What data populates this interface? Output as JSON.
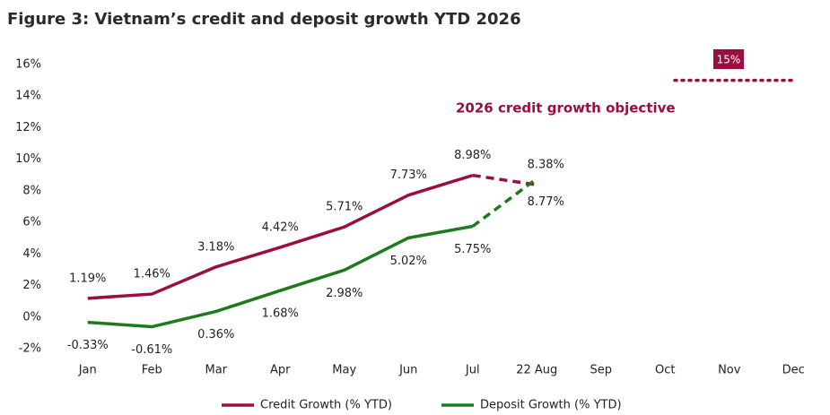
{
  "chart_data": {
    "type": "line",
    "title": "Figure 3: Vietnam’s credit and deposit growth YTD 2026",
    "categories": [
      "Jan",
      "Feb",
      "Mar",
      "Apr",
      "May",
      "Jun",
      "Jul",
      "22 Aug",
      "Sep",
      "Oct",
      "Nov",
      "Dec"
    ],
    "series": [
      {
        "name": "Credit Growth (% YTD)",
        "color": "#9b0e3f",
        "values": [
          1.19,
          1.46,
          3.18,
          4.42,
          5.71,
          7.73,
          8.98,
          8.38,
          null,
          null,
          null,
          null
        ],
        "value_labels": [
          "1.19%",
          "1.46%",
          "3.18%",
          "4.42%",
          "5.71%",
          "7.73%",
          "8.98%",
          "8.38%",
          null,
          null,
          null,
          null
        ]
      },
      {
        "name": "Deposit Growth (% YTD)",
        "color": "#1e7a1e",
        "values": [
          -0.33,
          -0.61,
          0.36,
          1.68,
          2.98,
          5.02,
          5.75,
          8.77,
          null,
          null,
          null,
          null
        ],
        "value_labels": [
          "-0.33%",
          "-0.61%",
          "0.36%",
          "1.68%",
          "2.98%",
          "5.02%",
          "5.75%",
          "8.77%",
          null,
          null,
          null,
          null
        ]
      }
    ],
    "objective": {
      "value": 15,
      "label": "15%",
      "text": "2026 credit growth objective",
      "color": "#9b0e3f"
    },
    "ylim": [
      -2,
      16
    ],
    "yticks": [
      {
        "value": -2,
        "label": "-2%"
      },
      {
        "value": 0,
        "label": "0%"
      },
      {
        "value": 2,
        "label": "2%"
      },
      {
        "value": 4,
        "label": "4%"
      },
      {
        "value": 6,
        "label": "6%"
      },
      {
        "value": 8,
        "label": "8%"
      },
      {
        "value": 10,
        "label": "10%"
      },
      {
        "value": 12,
        "label": "12%"
      },
      {
        "value": 14,
        "label": "14%"
      },
      {
        "value": 16,
        "label": "16%"
      }
    ],
    "grid": false
  }
}
